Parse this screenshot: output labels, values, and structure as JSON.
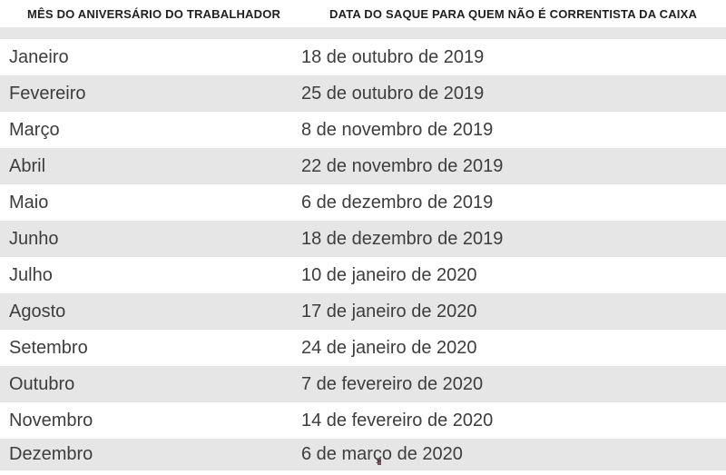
{
  "chart_data": {
    "type": "table",
    "columns": [
      "MÊS DO ANIVERSÁRIO DO TRABALHADOR",
      "DATA DO SAQUE PARA QUEM NÃO É CORRENTISTA DA CAIXA"
    ],
    "rows": [
      [
        "Janeiro",
        "18 de outubro de 2019"
      ],
      [
        "Fevereiro",
        "25 de outubro de 2019"
      ],
      [
        "Março",
        "8 de novembro de 2019"
      ],
      [
        "Abril",
        "22 de novembro de 2019"
      ],
      [
        "Maio",
        "6 de dezembro de 2019"
      ],
      [
        "Junho",
        "18 de dezembro de 2019"
      ],
      [
        "Julho",
        "10 de janeiro de 2020"
      ],
      [
        "Agosto",
        "17 de janeiro de 2020"
      ],
      [
        "Setembro",
        "24 de janeiro de 2020"
      ],
      [
        "Outubro",
        "7 de fevereiro de 2020"
      ],
      [
        "Novembro",
        "14 de fevereiro de 2020"
      ],
      [
        "Dezembro",
        "6 de março de 2020"
      ]
    ],
    "layout": {
      "stripe_color": "#e6e6e6",
      "background": "#ffffff",
      "header_text_color": "#1f1f1f",
      "body_text_color": "#3d3d3d"
    }
  }
}
